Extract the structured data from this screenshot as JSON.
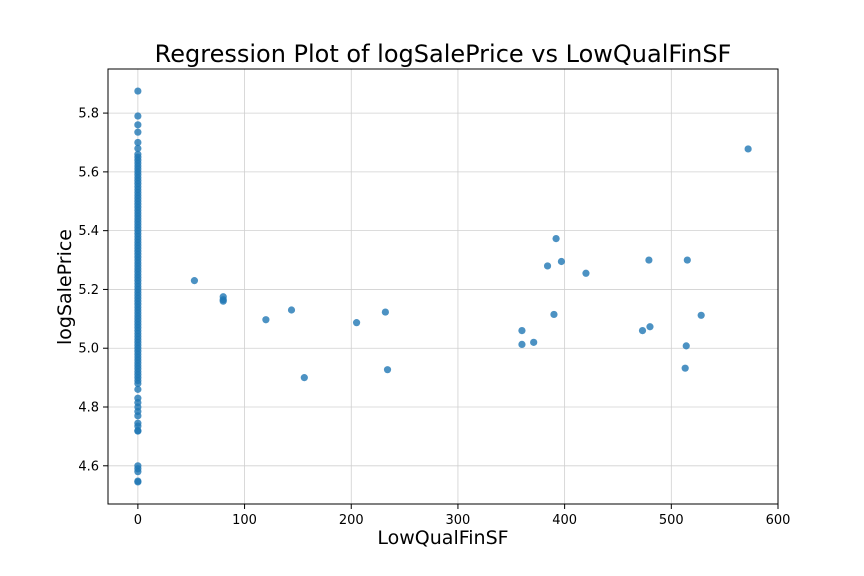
{
  "chart_data": {
    "type": "scatter",
    "title": "Regression Plot of logSalePrice vs LowQualFinSF",
    "xlabel": "LowQualFinSF",
    "ylabel": "logSalePrice",
    "xlim": [
      -28,
      600
    ],
    "ylim": [
      4.47,
      5.95
    ],
    "xticks": [
      0,
      100,
      200,
      300,
      400,
      500,
      600
    ],
    "yticks": [
      4.6,
      4.8,
      5.0,
      5.2,
      5.4,
      5.6,
      5.8
    ],
    "grid": true,
    "point_color": "#1f77b4",
    "series": [
      {
        "x": [
          0,
          0,
          0,
          0,
          0,
          0,
          0,
          0,
          0,
          0,
          0,
          0,
          0,
          0,
          0,
          0,
          0,
          0,
          0,
          0,
          0,
          0,
          0,
          0,
          0,
          0,
          0,
          0,
          0,
          0,
          0,
          0,
          0,
          0,
          0,
          0,
          0,
          0,
          0,
          0,
          0,
          0,
          0,
          0,
          0,
          0,
          0,
          0,
          0,
          0,
          0,
          0,
          0,
          0,
          0,
          0,
          0,
          0,
          0,
          0,
          0,
          0,
          0,
          0,
          0,
          0,
          0,
          0,
          0,
          0,
          0,
          0,
          0,
          0,
          0,
          0,
          0,
          0,
          0,
          0,
          0,
          0,
          0,
          0,
          0,
          0,
          0,
          0,
          0,
          0,
          0,
          0,
          0,
          0,
          0,
          0,
          0,
          0,
          0,
          0,
          53,
          80,
          80,
          80,
          120,
          144,
          156,
          205,
          232,
          234,
          360,
          360,
          371,
          384,
          390,
          392,
          397,
          420,
          473,
          479,
          480,
          513,
          514,
          515,
          528,
          572
        ],
        "y": [
          4.545,
          4.548,
          4.58,
          4.59,
          4.6,
          4.718,
          4.72,
          4.735,
          4.745,
          4.77,
          4.785,
          4.8,
          4.815,
          4.83,
          4.86,
          4.88,
          4.89,
          4.9,
          4.91,
          4.92,
          4.93,
          4.94,
          4.95,
          4.96,
          4.97,
          4.98,
          4.99,
          5.0,
          5.01,
          5.02,
          5.03,
          5.04,
          5.05,
          5.06,
          5.07,
          5.08,
          5.09,
          5.1,
          5.11,
          5.12,
          5.13,
          5.14,
          5.15,
          5.16,
          5.17,
          5.18,
          5.19,
          5.2,
          5.21,
          5.22,
          5.23,
          5.24,
          5.25,
          5.26,
          5.27,
          5.28,
          5.29,
          5.3,
          5.31,
          5.32,
          5.33,
          5.34,
          5.35,
          5.36,
          5.37,
          5.38,
          5.39,
          5.4,
          5.41,
          5.42,
          5.43,
          5.44,
          5.45,
          5.46,
          5.47,
          5.48,
          5.49,
          5.5,
          5.51,
          5.52,
          5.53,
          5.54,
          5.55,
          5.56,
          5.57,
          5.58,
          5.59,
          5.6,
          5.61,
          5.62,
          5.63,
          5.64,
          5.65,
          5.66,
          5.68,
          5.7,
          5.735,
          5.76,
          5.79,
          5.875,
          5.23,
          5.175,
          5.165,
          5.16,
          5.097,
          5.13,
          4.9,
          5.087,
          5.123,
          4.927,
          5.06,
          5.013,
          5.02,
          5.28,
          5.115,
          5.373,
          5.295,
          5.255,
          5.06,
          5.3,
          5.073,
          4.932,
          5.008,
          5.3,
          5.112,
          5.678
        ]
      }
    ]
  }
}
